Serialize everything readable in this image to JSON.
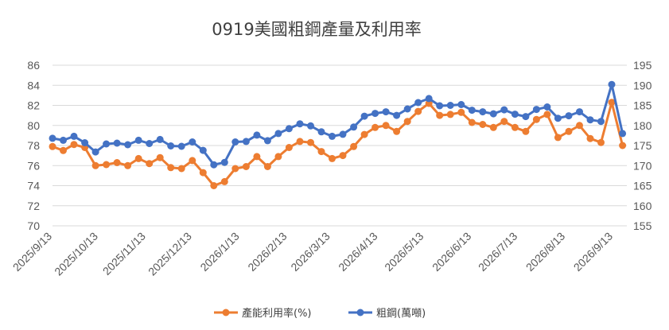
{
  "chart_data": {
    "type": "line",
    "title": "0919美國粗鋼產量及利用率",
    "grid": true,
    "legend_position": "bottom",
    "x": [
      "2025/9/13",
      "2025/9/20",
      "2025/9/27",
      "2025/10/4",
      "2025/10/11",
      "2025/10/18",
      "2025/10/25",
      "2025/11/1",
      "2025/11/8",
      "2025/11/15",
      "2025/11/22",
      "2025/11/29",
      "2025/12/6",
      "2025/12/13",
      "2025/12/20",
      "2025/12/27",
      "2026/1/3",
      "2026/1/10",
      "2026/1/17",
      "2026/1/24",
      "2026/1/31",
      "2026/2/7",
      "2026/2/14",
      "2026/2/21",
      "2026/2/28",
      "2026/3/7",
      "2026/3/14",
      "2026/3/21",
      "2026/3/28",
      "2026/4/4",
      "2026/4/11",
      "2026/4/18",
      "2026/4/25",
      "2026/5/2",
      "2026/5/9",
      "2026/5/16",
      "2026/5/23",
      "2026/5/30",
      "2026/6/6",
      "2026/6/13",
      "2026/6/20",
      "2026/6/27",
      "2026/7/4",
      "2026/7/11",
      "2026/7/18",
      "2026/7/25",
      "2026/8/1",
      "2026/8/8",
      "2026/8/15",
      "2026/8/22",
      "2026/8/29",
      "2026/9/5",
      "2026/9/12",
      "2026/9/19"
    ],
    "x_tick_labels": [
      "2025/9/13",
      "2025/10/13",
      "2025/11/13",
      "2025/12/13",
      "2026/1/13",
      "2026/2/13",
      "2026/3/13",
      "2026/4/13",
      "2026/5/13",
      "2026/6/13",
      "2026/7/13",
      "2026/8/13",
      "2026/9/13"
    ],
    "y_left": {
      "ticks": [
        "70",
        "72",
        "74",
        "76",
        "78",
        "80",
        "82",
        "84",
        "86"
      ],
      "ylim": [
        70,
        86
      ]
    },
    "y_right": {
      "ticks": [
        "155",
        "160",
        "165",
        "170",
        "175",
        "180",
        "185",
        "190",
        "195"
      ],
      "ylim": [
        155,
        195
      ]
    },
    "series": [
      {
        "name": "產能利用率(%)",
        "color": "#ED7D31",
        "axis": "left",
        "values": [
          77.9,
          77.5,
          78.1,
          77.8,
          76.0,
          76.1,
          76.3,
          76.0,
          76.7,
          76.2,
          76.8,
          75.8,
          75.7,
          76.5,
          75.3,
          74.0,
          74.4,
          75.7,
          75.9,
          76.9,
          75.9,
          76.9,
          77.8,
          78.4,
          78.3,
          77.4,
          76.7,
          77.0,
          77.9,
          79.1,
          79.8,
          80.0,
          79.4,
          80.4,
          81.4,
          82.2,
          81.0,
          81.1,
          81.3,
          80.3,
          80.1,
          79.8,
          80.4,
          79.8,
          79.4,
          80.6,
          81.1,
          78.8,
          79.4,
          80.0,
          78.7,
          78.3,
          82.3,
          78.0
        ]
      },
      {
        "name": "粗鋼(萬噸)",
        "color": "#4472C4",
        "axis": "right",
        "values": [
          176.8,
          176.3,
          177.3,
          175.7,
          173.4,
          175.4,
          175.6,
          175.2,
          176.3,
          175.5,
          176.5,
          174.9,
          174.8,
          175.9,
          173.8,
          170.2,
          170.8,
          175.9,
          176.0,
          177.6,
          176.2,
          178.0,
          179.2,
          180.4,
          179.9,
          178.4,
          177.3,
          177.8,
          179.6,
          182.3,
          183.0,
          183.4,
          182.5,
          184.1,
          185.7,
          186.7,
          184.9,
          185.0,
          185.2,
          183.8,
          183.4,
          182.9,
          183.9,
          182.8,
          182.2,
          184.0,
          184.6,
          181.8,
          182.4,
          183.4,
          181.4,
          181.0,
          190.2,
          178.0
        ]
      }
    ]
  }
}
